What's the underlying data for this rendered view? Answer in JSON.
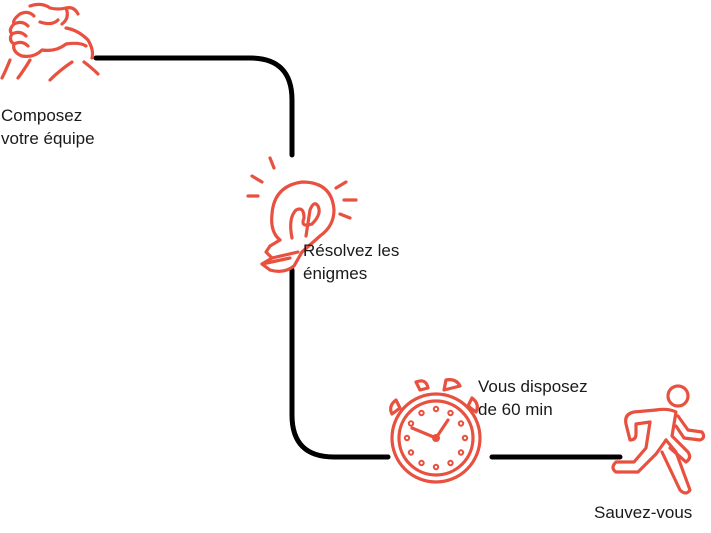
{
  "colors": {
    "accent": "#e8513f",
    "line": "#000000",
    "text": "#1a1a1a"
  },
  "steps": [
    {
      "icon": "handshake-icon",
      "label_lines": [
        "Composez",
        "votre équipe"
      ]
    },
    {
      "icon": "lightbulb-icon",
      "label_lines": [
        "Résolvez les",
        "énigmes"
      ]
    },
    {
      "icon": "stopwatch-icon",
      "label_lines": [
        "Vous disposez",
        "de 60 min"
      ]
    },
    {
      "icon": "running-person-icon",
      "label_lines": [
        "Sauvez-vous"
      ]
    }
  ]
}
